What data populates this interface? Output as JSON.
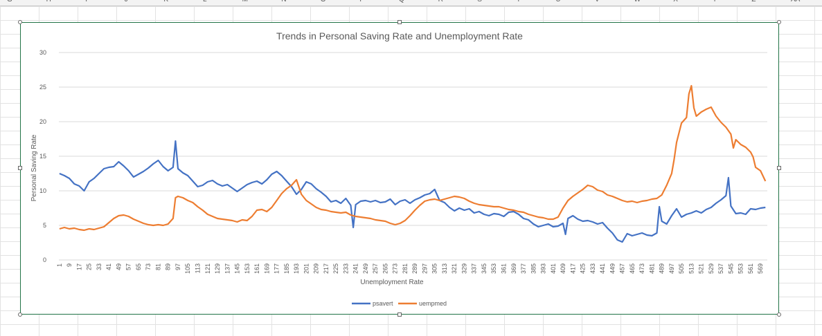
{
  "spreadsheet": {
    "column_letters": [
      "G",
      "H",
      "I",
      "J",
      "K",
      "L",
      "M",
      "N",
      "O",
      "P",
      "Q",
      "R",
      "S",
      "T",
      "U",
      "V",
      "W",
      "X",
      "Y",
      "Z",
      "AA"
    ]
  },
  "chart_data": {
    "type": "line",
    "title": "Trends in Personal Saving Rate and Unemployment Rate",
    "xlabel": "Unemployment Rate",
    "ylabel": "Personal Saving Rate",
    "ylim": [
      0,
      30
    ],
    "yticks": [
      0,
      5,
      10,
      15,
      20,
      25,
      30
    ],
    "x_count": 574,
    "xtick_labels": [
      "1",
      "9",
      "17",
      "25",
      "33",
      "41",
      "49",
      "57",
      "65",
      "73",
      "81",
      "89",
      "97",
      "105",
      "113",
      "121",
      "129",
      "137",
      "145",
      "153",
      "161",
      "169",
      "177",
      "185",
      "193",
      "201",
      "209",
      "217",
      "225",
      "233",
      "241",
      "249",
      "257",
      "265",
      "273",
      "281",
      "289",
      "297",
      "305",
      "313",
      "321",
      "329",
      "337",
      "345",
      "353",
      "361",
      "369",
      "377",
      "385",
      "393",
      "401",
      "409",
      "417",
      "425",
      "433",
      "441",
      "449",
      "457",
      "465",
      "473",
      "481",
      "489",
      "497",
      "505",
      "513",
      "521",
      "529",
      "537",
      "545",
      "553",
      "561",
      "569"
    ],
    "grid": true,
    "legend_position": "bottom",
    "series": [
      {
        "name": "psavert",
        "color": "#4472c4",
        "points": [
          [
            1,
            12.5
          ],
          [
            5,
            12.2
          ],
          [
            9,
            11.8
          ],
          [
            13,
            11.0
          ],
          [
            17,
            10.7
          ],
          [
            21,
            10.0
          ],
          [
            25,
            11.3
          ],
          [
            29,
            11.8
          ],
          [
            33,
            12.5
          ],
          [
            37,
            13.2
          ],
          [
            41,
            13.4
          ],
          [
            45,
            13.5
          ],
          [
            49,
            14.2
          ],
          [
            53,
            13.6
          ],
          [
            57,
            12.9
          ],
          [
            61,
            12.0
          ],
          [
            65,
            12.4
          ],
          [
            69,
            12.8
          ],
          [
            73,
            13.3
          ],
          [
            77,
            13.9
          ],
          [
            81,
            14.4
          ],
          [
            85,
            13.5
          ],
          [
            89,
            12.9
          ],
          [
            93,
            13.4
          ],
          [
            95,
            17.2
          ],
          [
            97,
            13.2
          ],
          [
            101,
            12.6
          ],
          [
            105,
            12.2
          ],
          [
            109,
            11.4
          ],
          [
            113,
            10.6
          ],
          [
            117,
            10.8
          ],
          [
            121,
            11.3
          ],
          [
            125,
            11.5
          ],
          [
            129,
            11.0
          ],
          [
            133,
            10.7
          ],
          [
            137,
            10.9
          ],
          [
            141,
            10.4
          ],
          [
            145,
            9.9
          ],
          [
            149,
            10.4
          ],
          [
            153,
            10.9
          ],
          [
            157,
            11.2
          ],
          [
            161,
            11.4
          ],
          [
            165,
            11.0
          ],
          [
            169,
            11.6
          ],
          [
            173,
            12.4
          ],
          [
            177,
            12.8
          ],
          [
            181,
            12.2
          ],
          [
            185,
            11.4
          ],
          [
            189,
            10.6
          ],
          [
            193,
            9.5
          ],
          [
            197,
            10.2
          ],
          [
            201,
            11.3
          ],
          [
            205,
            11.0
          ],
          [
            209,
            10.3
          ],
          [
            213,
            9.8
          ],
          [
            217,
            9.2
          ],
          [
            221,
            8.4
          ],
          [
            225,
            8.6
          ],
          [
            229,
            8.2
          ],
          [
            233,
            8.9
          ],
          [
            237,
            7.9
          ],
          [
            239,
            4.7
          ],
          [
            241,
            8.0
          ],
          [
            245,
            8.5
          ],
          [
            249,
            8.6
          ],
          [
            253,
            8.4
          ],
          [
            257,
            8.6
          ],
          [
            261,
            8.3
          ],
          [
            265,
            8.4
          ],
          [
            269,
            8.8
          ],
          [
            273,
            8.0
          ],
          [
            277,
            8.5
          ],
          [
            281,
            8.7
          ],
          [
            285,
            8.2
          ],
          [
            289,
            8.7
          ],
          [
            293,
            9.0
          ],
          [
            297,
            9.4
          ],
          [
            301,
            9.6
          ],
          [
            305,
            10.2
          ],
          [
            309,
            8.6
          ],
          [
            313,
            8.3
          ],
          [
            317,
            7.6
          ],
          [
            321,
            7.1
          ],
          [
            325,
            7.5
          ],
          [
            329,
            7.2
          ],
          [
            333,
            7.4
          ],
          [
            337,
            6.8
          ],
          [
            341,
            7.0
          ],
          [
            345,
            6.6
          ],
          [
            349,
            6.4
          ],
          [
            353,
            6.7
          ],
          [
            357,
            6.6
          ],
          [
            361,
            6.3
          ],
          [
            365,
            6.9
          ],
          [
            369,
            7.0
          ],
          [
            373,
            6.6
          ],
          [
            377,
            6.0
          ],
          [
            381,
            5.8
          ],
          [
            385,
            5.2
          ],
          [
            389,
            4.8
          ],
          [
            393,
            5.0
          ],
          [
            397,
            5.2
          ],
          [
            401,
            4.8
          ],
          [
            405,
            4.9
          ],
          [
            409,
            5.3
          ],
          [
            411,
            3.7
          ],
          [
            413,
            6.0
          ],
          [
            417,
            6.4
          ],
          [
            421,
            5.9
          ],
          [
            425,
            5.6
          ],
          [
            429,
            5.7
          ],
          [
            433,
            5.5
          ],
          [
            437,
            5.2
          ],
          [
            441,
            5.4
          ],
          [
            445,
            4.6
          ],
          [
            449,
            3.9
          ],
          [
            453,
            2.9
          ],
          [
            457,
            2.6
          ],
          [
            461,
            3.8
          ],
          [
            465,
            3.5
          ],
          [
            469,
            3.7
          ],
          [
            473,
            3.9
          ],
          [
            477,
            3.6
          ],
          [
            481,
            3.5
          ],
          [
            485,
            3.9
          ],
          [
            487,
            7.7
          ],
          [
            489,
            5.6
          ],
          [
            493,
            5.2
          ],
          [
            497,
            6.4
          ],
          [
            501,
            7.4
          ],
          [
            505,
            6.2
          ],
          [
            509,
            6.6
          ],
          [
            513,
            6.8
          ],
          [
            517,
            7.1
          ],
          [
            521,
            6.8
          ],
          [
            525,
            7.3
          ],
          [
            529,
            7.6
          ],
          [
            533,
            8.2
          ],
          [
            537,
            8.7
          ],
          [
            541,
            9.3
          ],
          [
            543,
            11.9
          ],
          [
            545,
            7.8
          ],
          [
            549,
            6.7
          ],
          [
            553,
            6.8
          ],
          [
            557,
            6.6
          ],
          [
            561,
            7.4
          ],
          [
            565,
            7.3
          ],
          [
            569,
            7.5
          ],
          [
            573,
            7.6
          ]
        ]
      },
      {
        "name": "uempmed",
        "color": "#ed7d31",
        "points": [
          [
            1,
            4.5
          ],
          [
            5,
            4.7
          ],
          [
            9,
            4.5
          ],
          [
            13,
            4.6
          ],
          [
            17,
            4.4
          ],
          [
            21,
            4.3
          ],
          [
            25,
            4.5
          ],
          [
            29,
            4.4
          ],
          [
            33,
            4.6
          ],
          [
            37,
            4.8
          ],
          [
            41,
            5.4
          ],
          [
            45,
            6.0
          ],
          [
            49,
            6.4
          ],
          [
            53,
            6.5
          ],
          [
            57,
            6.3
          ],
          [
            61,
            5.9
          ],
          [
            65,
            5.6
          ],
          [
            69,
            5.3
          ],
          [
            73,
            5.1
          ],
          [
            77,
            5.0
          ],
          [
            81,
            5.1
          ],
          [
            85,
            5.0
          ],
          [
            89,
            5.2
          ],
          [
            93,
            6.0
          ],
          [
            95,
            9.0
          ],
          [
            97,
            9.2
          ],
          [
            101,
            9.0
          ],
          [
            105,
            8.6
          ],
          [
            109,
            8.3
          ],
          [
            113,
            7.7
          ],
          [
            117,
            7.2
          ],
          [
            121,
            6.6
          ],
          [
            125,
            6.3
          ],
          [
            129,
            6.0
          ],
          [
            133,
            5.9
          ],
          [
            137,
            5.8
          ],
          [
            141,
            5.7
          ],
          [
            145,
            5.5
          ],
          [
            149,
            5.8
          ],
          [
            153,
            5.7
          ],
          [
            157,
            6.3
          ],
          [
            161,
            7.2
          ],
          [
            165,
            7.3
          ],
          [
            169,
            7.0
          ],
          [
            173,
            7.6
          ],
          [
            177,
            8.6
          ],
          [
            181,
            9.6
          ],
          [
            185,
            10.3
          ],
          [
            189,
            10.8
          ],
          [
            193,
            11.6
          ],
          [
            197,
            9.5
          ],
          [
            201,
            8.6
          ],
          [
            205,
            8.1
          ],
          [
            209,
            7.6
          ],
          [
            213,
            7.3
          ],
          [
            217,
            7.2
          ],
          [
            221,
            7.0
          ],
          [
            225,
            6.9
          ],
          [
            229,
            6.8
          ],
          [
            233,
            6.9
          ],
          [
            237,
            6.5
          ],
          [
            241,
            6.3
          ],
          [
            245,
            6.2
          ],
          [
            249,
            6.1
          ],
          [
            253,
            6.0
          ],
          [
            257,
            5.8
          ],
          [
            261,
            5.7
          ],
          [
            265,
            5.6
          ],
          [
            269,
            5.3
          ],
          [
            273,
            5.1
          ],
          [
            277,
            5.3
          ],
          [
            281,
            5.7
          ],
          [
            285,
            6.4
          ],
          [
            289,
            7.2
          ],
          [
            293,
            7.9
          ],
          [
            297,
            8.5
          ],
          [
            301,
            8.7
          ],
          [
            305,
            8.8
          ],
          [
            309,
            8.6
          ],
          [
            313,
            8.8
          ],
          [
            317,
            9.0
          ],
          [
            321,
            9.2
          ],
          [
            325,
            9.1
          ],
          [
            329,
            8.9
          ],
          [
            333,
            8.5
          ],
          [
            337,
            8.2
          ],
          [
            341,
            8.0
          ],
          [
            345,
            7.9
          ],
          [
            349,
            7.8
          ],
          [
            353,
            7.7
          ],
          [
            357,
            7.7
          ],
          [
            361,
            7.5
          ],
          [
            365,
            7.3
          ],
          [
            369,
            7.2
          ],
          [
            373,
            7.0
          ],
          [
            377,
            6.9
          ],
          [
            381,
            6.6
          ],
          [
            385,
            6.4
          ],
          [
            389,
            6.2
          ],
          [
            393,
            6.1
          ],
          [
            397,
            5.9
          ],
          [
            401,
            5.9
          ],
          [
            405,
            6.2
          ],
          [
            409,
            7.5
          ],
          [
            413,
            8.6
          ],
          [
            417,
            9.2
          ],
          [
            421,
            9.7
          ],
          [
            425,
            10.2
          ],
          [
            429,
            10.8
          ],
          [
            433,
            10.6
          ],
          [
            437,
            10.1
          ],
          [
            441,
            9.9
          ],
          [
            445,
            9.4
          ],
          [
            449,
            9.2
          ],
          [
            453,
            8.9
          ],
          [
            457,
            8.6
          ],
          [
            461,
            8.4
          ],
          [
            465,
            8.5
          ],
          [
            469,
            8.3
          ],
          [
            473,
            8.5
          ],
          [
            477,
            8.6
          ],
          [
            481,
            8.8
          ],
          [
            485,
            8.9
          ],
          [
            489,
            9.4
          ],
          [
            493,
            10.8
          ],
          [
            497,
            12.5
          ],
          [
            499,
            14.5
          ],
          [
            501,
            17.0
          ],
          [
            505,
            19.8
          ],
          [
            509,
            20.6
          ],
          [
            511,
            24.0
          ],
          [
            513,
            25.2
          ],
          [
            515,
            22.0
          ],
          [
            517,
            20.8
          ],
          [
            521,
            21.4
          ],
          [
            525,
            21.8
          ],
          [
            529,
            22.1
          ],
          [
            533,
            20.8
          ],
          [
            537,
            19.9
          ],
          [
            541,
            19.2
          ],
          [
            545,
            18.2
          ],
          [
            547,
            16.2
          ],
          [
            549,
            17.4
          ],
          [
            553,
            16.7
          ],
          [
            557,
            16.3
          ],
          [
            561,
            15.6
          ],
          [
            563,
            14.9
          ],
          [
            565,
            13.4
          ],
          [
            569,
            12.9
          ],
          [
            573,
            11.4
          ]
        ]
      }
    ]
  }
}
